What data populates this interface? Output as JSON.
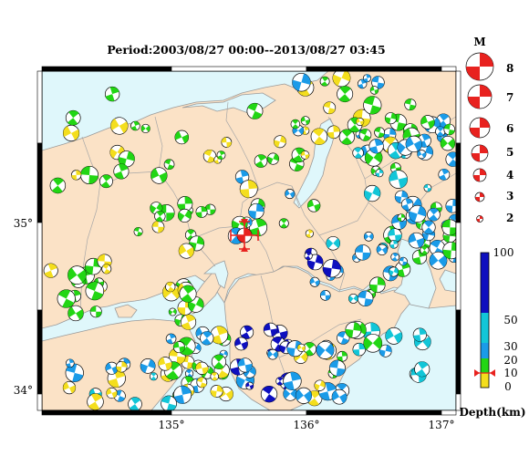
{
  "title": "Period:2003/08/27 00:00--2013/08/27 03:45",
  "map": {
    "lat_ticks": [
      "35°",
      "34°"
    ],
    "lon_ticks": [
      "135°",
      "136°",
      "137°"
    ],
    "colors": {
      "sea": "#dff7fb",
      "land": "#fbe2c6",
      "border": "#9a9a9a"
    }
  },
  "mechanism_colors": {
    "shallow": "#f4de1d",
    "mid": "#22d614",
    "deep1": "#1a9be8",
    "deep2": "#12c6d8",
    "deepest": "#0e0fbf"
  },
  "magnitude_legend": {
    "title": "M",
    "items": [
      "8",
      "7",
      "6",
      "5",
      "4",
      "3",
      "2"
    ]
  },
  "depth_legend": {
    "unit": "Depth(km)",
    "ticks": [
      "100",
      "50",
      "30",
      "20",
      "10",
      "0"
    ],
    "colors": [
      "#0e0fbf",
      "#12c6d8",
      "#1a9be8",
      "#22d614",
      "#f4de1d"
    ]
  },
  "epicenter": {
    "lon": 135.55,
    "lat": 34.93,
    "depth_km": 10
  }
}
